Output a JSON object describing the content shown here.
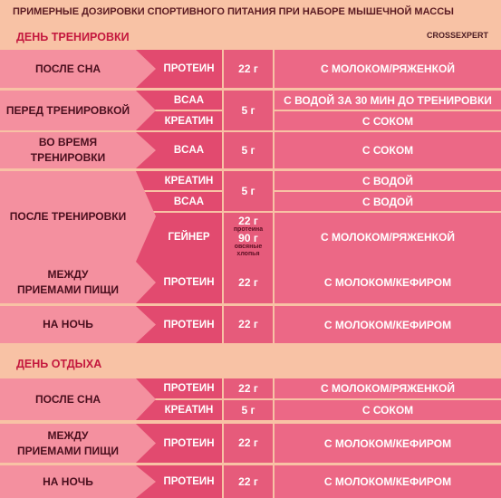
{
  "header": {
    "title": "ПРИМЕРНЫЕ ДОЗИРОВКИ СПОРТИВНОГО ПИТАНИЯ ПРИ НАБОРЕ МЫШЕЧНОЙ МАССЫ",
    "logo": "CROSSEXPERT"
  },
  "sections": [
    {
      "title": "ДЕНЬ ТРЕНИРОВКИ",
      "groups": [
        {
          "time": "ПОСЛЕ СНА",
          "items": [
            {
              "product": "ПРОТЕИН",
              "mix": "С МОЛОКОМ/РЯЖЕНКОЙ"
            }
          ],
          "doses": [
            "22 г"
          ]
        },
        {
          "time": "ПЕРЕД ТРЕНИРОВКОЙ",
          "items": [
            {
              "product": "BCAA",
              "mix": "С ВОДОЙ ЗА 30 МИН ДО ТРЕНИРОВКИ"
            },
            {
              "product": "КРЕАТИН",
              "mix": "С СОКОМ"
            }
          ],
          "doses": [
            "5 г"
          ]
        },
        {
          "time": "ВО ВРЕМЯ\nТРЕНИРОВКИ",
          "items": [
            {
              "product": "BCAA",
              "mix": "С СОКОМ"
            }
          ],
          "doses": [
            "5 г"
          ]
        },
        {
          "time": "ПОСЛЕ ТРЕНИРОВКИ",
          "items": [
            {
              "product": "КРЕАТИН",
              "mix": "С ВОДОЙ"
            },
            {
              "product": "BCAA",
              "mix": "С ВОДОЙ"
            },
            {
              "product": "ГЕЙНЕР",
              "mix": "С МОЛОКОМ/РЯЖЕНКОЙ"
            }
          ],
          "doses": [
            "5 г",
            [
              {
                "amount": "22 г",
                "note": "протеина"
              },
              {
                "amount": "90 г",
                "note": "овсяные хлопья"
              }
            ]
          ]
        },
        {
          "time": "МЕЖДУ\nПРИЕМАМИ ПИЩИ",
          "items": [
            {
              "product": "ПРОТЕИН",
              "mix": "С МОЛОКОМ/КЕФИРОМ"
            }
          ],
          "doses": [
            "22 г"
          ]
        },
        {
          "time": "НА НОЧЬ",
          "items": [
            {
              "product": "ПРОТЕИН",
              "mix": "С МОЛОКОМ/КЕФИРОМ"
            }
          ],
          "doses": [
            "22 г"
          ]
        }
      ]
    },
    {
      "title": "ДЕНЬ ОТДЫХА",
      "groups": [
        {
          "time": "ПОСЛЕ СНА",
          "items": [
            {
              "product": "ПРОТЕИН",
              "mix": "С МОЛОКОМ/РЯЖЕНКОЙ"
            },
            {
              "product": "КРЕАТИН",
              "mix": "С СОКОМ"
            }
          ],
          "doses": [
            "22 г",
            "5 г"
          ]
        },
        {
          "time": "МЕЖДУ\nПРИЕМАМИ ПИЩИ",
          "items": [
            {
              "product": "ПРОТЕИН",
              "mix": "С МОЛОКОМ/КЕФИРОМ"
            }
          ],
          "doses": [
            "22 г"
          ]
        },
        {
          "time": "НА НОЧЬ",
          "items": [
            {
              "product": "ПРОТЕИН",
              "mix": "С МОЛОКОМ/КЕФИРОМ"
            }
          ],
          "doses": [
            "22 г"
          ]
        }
      ]
    }
  ]
}
